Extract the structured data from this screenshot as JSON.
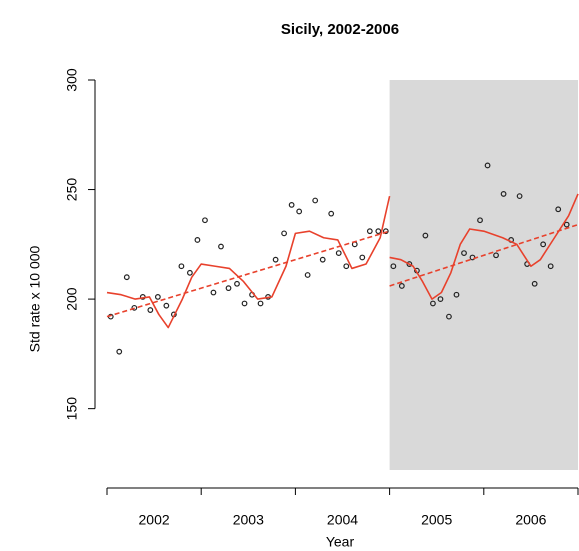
{
  "chart_data": {
    "type": "scatter",
    "title": "Sicily, 2002-2006",
    "xlabel": "Year",
    "ylabel": "Std rate x 10 000",
    "xlim": [
      2002,
      2007
    ],
    "ylim": [
      122,
      300
    ],
    "yticks": [
      150,
      200,
      250,
      300
    ],
    "xticks": [
      {
        "value": 2002,
        "label": "2002"
      },
      {
        "value": 2003,
        "label": "2003"
      },
      {
        "value": 2004,
        "label": "2004"
      },
      {
        "value": 2005,
        "label": "2005"
      },
      {
        "value": 2006,
        "label": "2006"
      }
    ],
    "shade": {
      "xlim": [
        2005,
        2007
      ],
      "color": "#d9d9d9"
    },
    "series": [
      {
        "mark": "points",
        "color": "#222222",
        "x": [
          2002.04,
          2002.13,
          2002.21,
          2002.29,
          2002.38,
          2002.46,
          2002.54,
          2002.63,
          2002.71,
          2002.79,
          2002.88,
          2002.96,
          2003.04,
          2003.13,
          2003.21,
          2003.29,
          2003.38,
          2003.46,
          2003.54,
          2003.63,
          2003.71,
          2003.79,
          2003.88,
          2003.96,
          2004.04,
          2004.13,
          2004.21,
          2004.29,
          2004.38,
          2004.46,
          2004.54,
          2004.63,
          2004.71,
          2004.79,
          2004.88,
          2004.96,
          2005.04,
          2005.13,
          2005.21,
          2005.29,
          2005.38,
          2005.46,
          2005.54,
          2005.63,
          2005.71,
          2005.79,
          2005.88,
          2005.96,
          2006.04,
          2006.13,
          2006.21,
          2006.29,
          2006.38,
          2006.46,
          2006.54,
          2006.63,
          2006.71,
          2006.79,
          2006.88
        ],
        "values": [
          192,
          176,
          210,
          196,
          201,
          195,
          201,
          197,
          193,
          215,
          212,
          227,
          236,
          203,
          224,
          205,
          207,
          198,
          202,
          198,
          201,
          218,
          230,
          243,
          240,
          211,
          245,
          218,
          239,
          221,
          215,
          225,
          219,
          231,
          231,
          231,
          215,
          206,
          216,
          213,
          229,
          198,
          200,
          192,
          202,
          221,
          219,
          236,
          261,
          220,
          248,
          227,
          247,
          216,
          207,
          225,
          215,
          241,
          234
        ]
      },
      {
        "mark": "line",
        "color": "#e8412c",
        "x": [
          2002,
          2002.15,
          2002.3,
          2002.45,
          2002.55,
          2002.65,
          2002.8,
          2002.9,
          2003,
          2003.15,
          2003.3,
          2003.45,
          2003.6,
          2003.75,
          2003.9,
          2004,
          2004.15,
          2004.3,
          2004.45,
          2004.6,
          2004.75,
          2004.9,
          2005,
          2005,
          2005,
          2005.12,
          2005.25,
          2005.35,
          2005.45,
          2005.55,
          2005.65,
          2005.75,
          2005.85,
          2006,
          2006.2,
          2006.35,
          2006.5,
          2006.6,
          2006.75,
          2006.9,
          2007
        ],
        "values": [
          203,
          202,
          200,
          201,
          193,
          187,
          200,
          210,
          216,
          215,
          214,
          208,
          200,
          201,
          215,
          230,
          231,
          228,
          227,
          214,
          216,
          228,
          247,
          null,
          219,
          218,
          215,
          208,
          200,
          203,
          212,
          225,
          232,
          231,
          228,
          225,
          215,
          218,
          228,
          238,
          248
        ]
      },
      {
        "mark": "line",
        "dashed": true,
        "color": "#e8412c",
        "x": [
          2002,
          2005,
          2005,
          2005,
          2007
        ],
        "values": [
          192,
          231,
          null,
          206,
          234
        ]
      }
    ]
  }
}
